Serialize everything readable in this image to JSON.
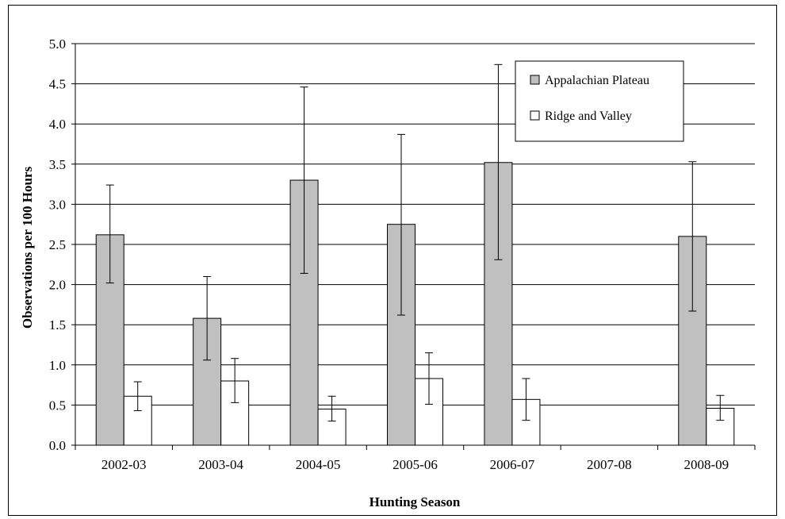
{
  "chart_data": {
    "type": "bar",
    "title": "",
    "xlabel": "Hunting Season",
    "ylabel": "Observations per 100 Hours",
    "ylim": [
      0,
      5
    ],
    "yticks": [
      "0.0",
      "0.5",
      "1.0",
      "1.5",
      "2.0",
      "2.5",
      "3.0",
      "3.5",
      "4.0",
      "4.5",
      "5.0"
    ],
    "grid": true,
    "legend_position": "top-right",
    "categories": [
      "2002-03",
      "2003-04",
      "2004-05",
      "2005-06",
      "2006-07",
      "2007-08",
      "2008-09"
    ],
    "series": [
      {
        "name": "Appalachian Plateau",
        "color": "#c0c0c0",
        "values": [
          2.62,
          1.58,
          3.3,
          2.75,
          3.52,
          null,
          2.6
        ],
        "err_low": [
          2.02,
          1.06,
          2.14,
          1.62,
          2.31,
          null,
          1.67
        ],
        "err_high": [
          3.24,
          2.1,
          4.46,
          3.87,
          4.74,
          null,
          3.53
        ]
      },
      {
        "name": "Ridge and Valley",
        "color": "#ffffff",
        "values": [
          0.61,
          0.8,
          0.45,
          0.83,
          0.57,
          null,
          0.46
        ],
        "err_low": [
          0.43,
          0.53,
          0.3,
          0.51,
          0.31,
          null,
          0.31
        ],
        "err_high": [
          0.79,
          1.08,
          0.61,
          1.15,
          0.83,
          null,
          0.62
        ]
      }
    ]
  }
}
